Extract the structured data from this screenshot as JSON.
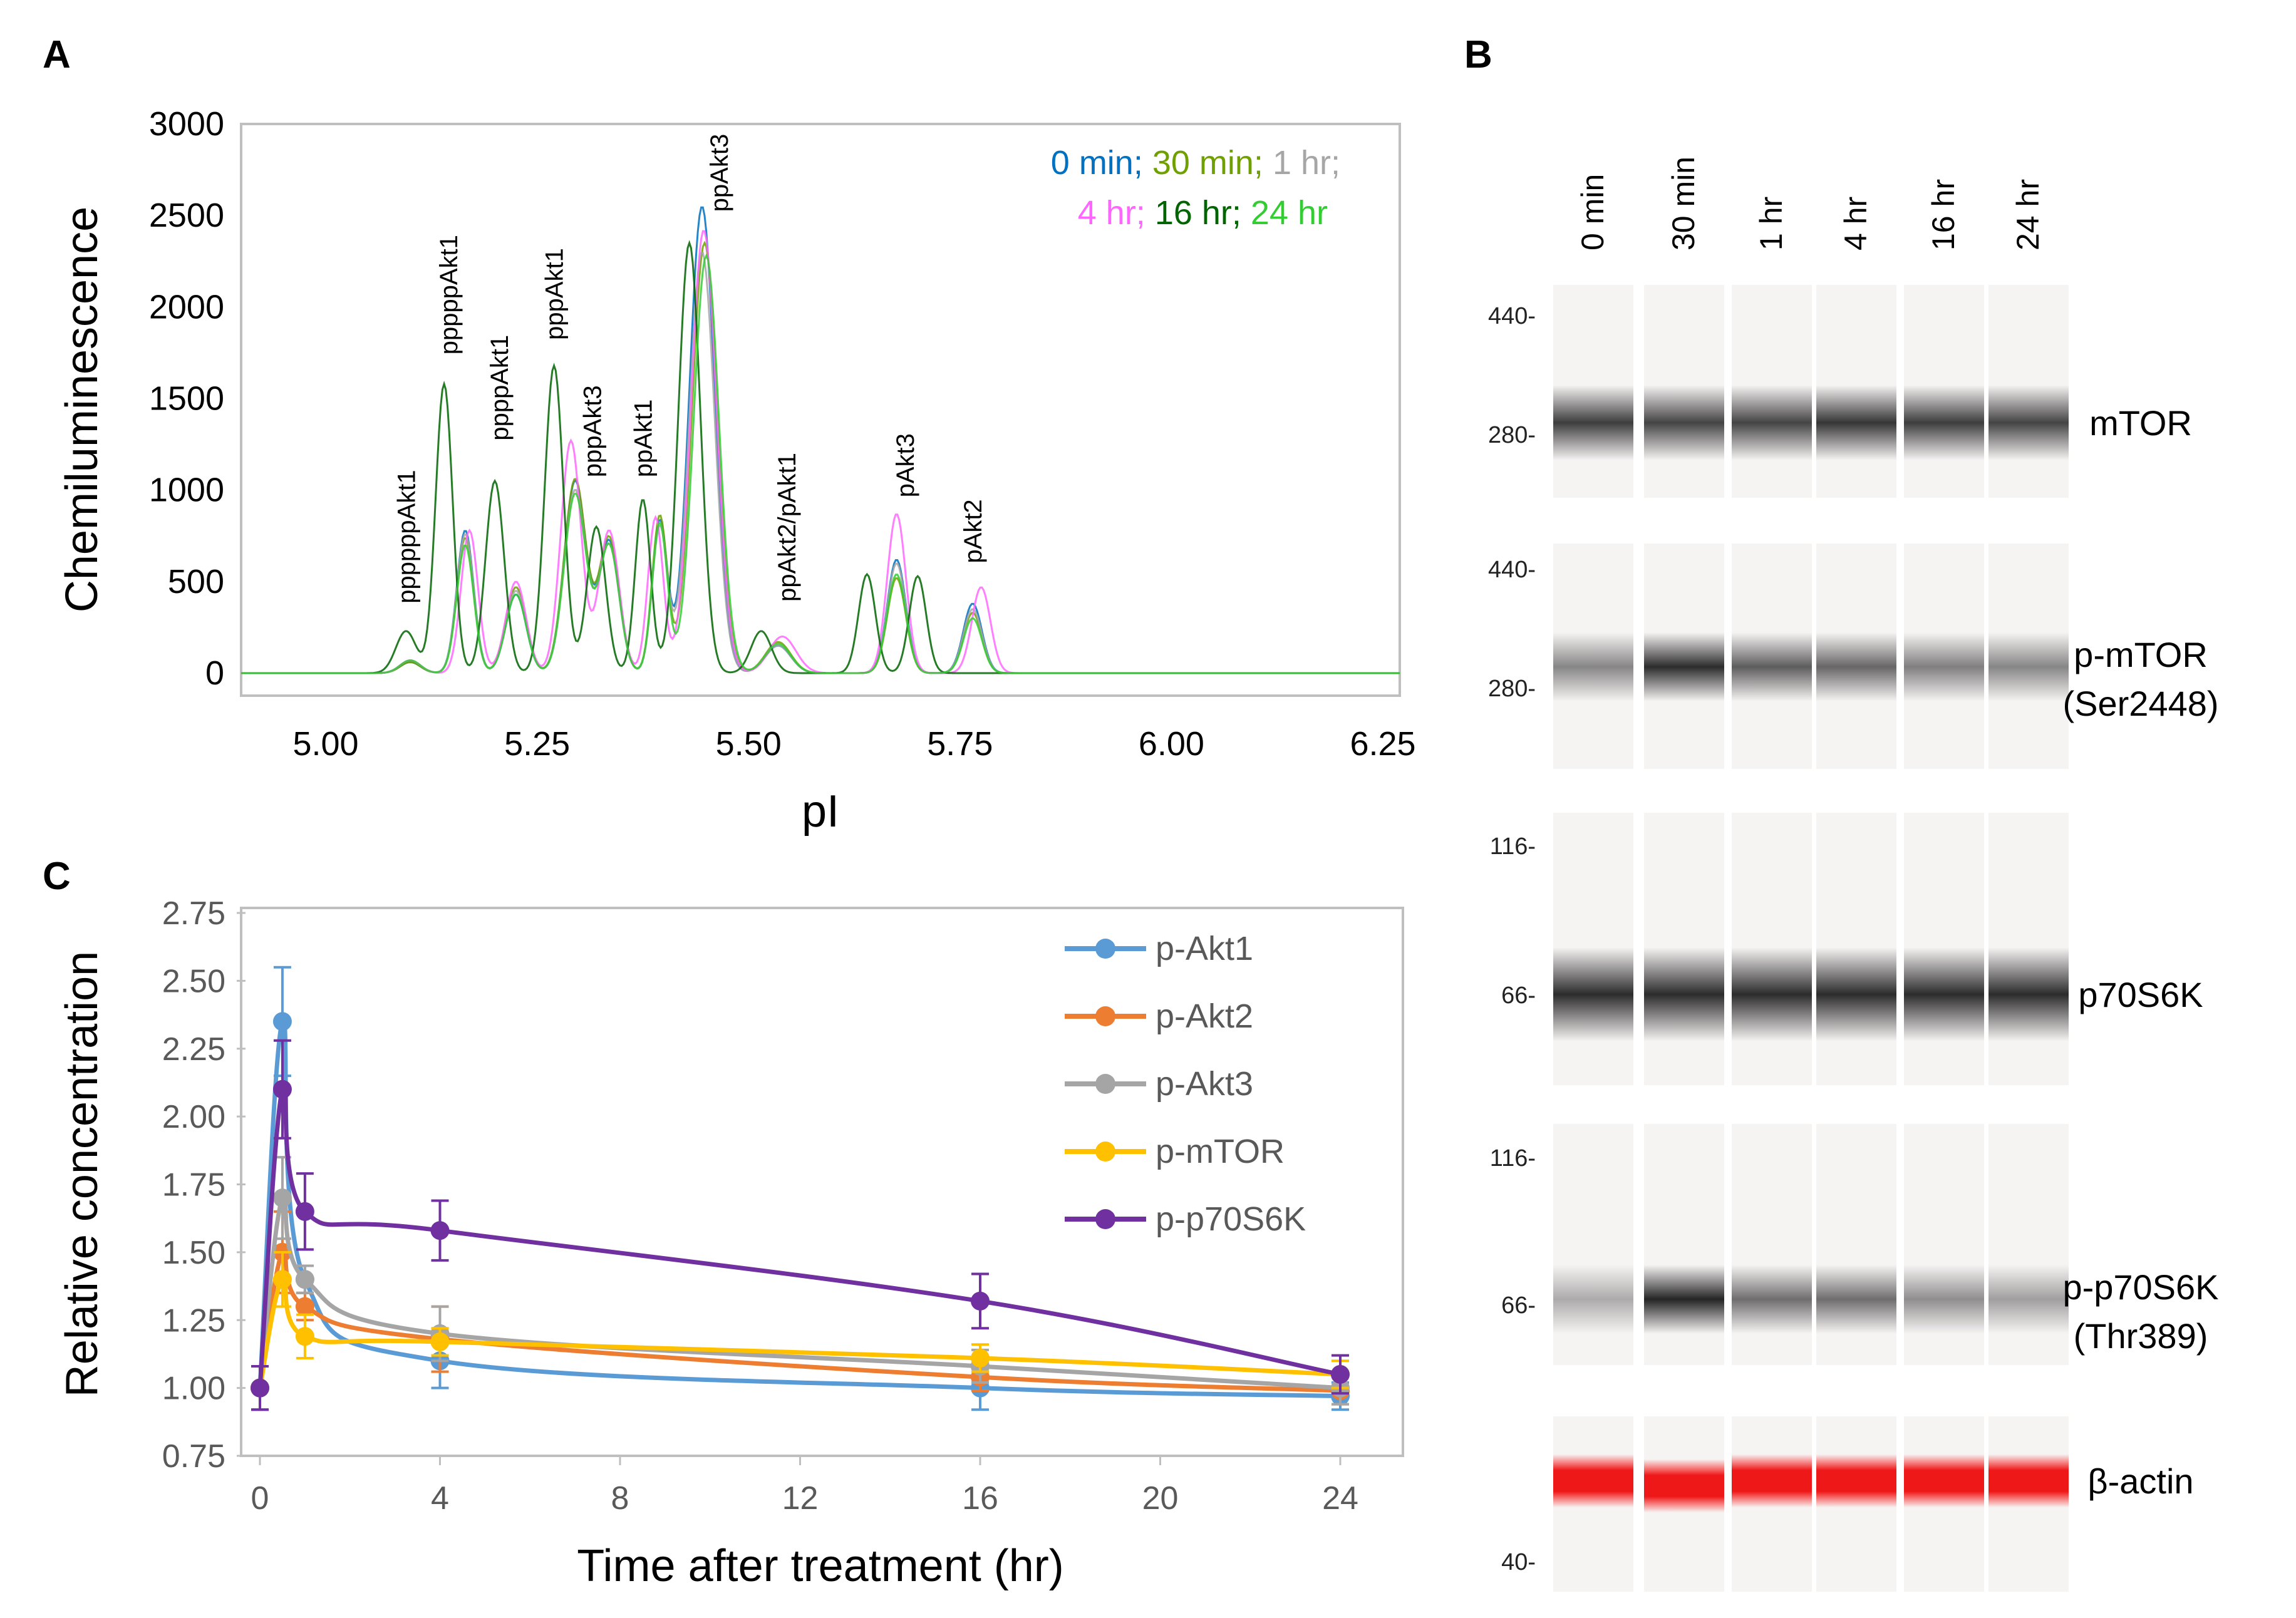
{
  "panels": {
    "A": "A",
    "B": "B",
    "C": "C"
  },
  "colors": {
    "t0": "#0070c0",
    "t30": "#70a000",
    "t1h": "#a6a6a6",
    "t4h": "#ff66ff",
    "t16h": "#006400",
    "t24h": "#33cc33",
    "akt1": "#5b9bd5",
    "akt2": "#ed7d31",
    "akt3": "#a5a5a5",
    "mtor": "#ffc000",
    "p70": "#7030a0"
  },
  "chart_data": [
    {
      "type": "line",
      "panel": "A",
      "xlabel": "pI",
      "ylabel": "Chemiluminescence",
      "xlim": [
        4.9,
        6.27
      ],
      "ylim": [
        0,
        3000
      ],
      "x_ticks": [
        "5.00",
        "5.25",
        "5.50",
        "5.75",
        "6.00",
        "6.25"
      ],
      "x_tick_values": [
        5.0,
        5.25,
        5.5,
        5.75,
        6.0,
        6.25
      ],
      "y_ticks": [
        "0",
        "500",
        "1000",
        "1500",
        "2000",
        "2500",
        "3000"
      ],
      "y_tick_values": [
        0,
        500,
        1000,
        1500,
        2000,
        2500,
        3000
      ],
      "legend": {
        "line1": [
          {
            "text": "0 min;",
            "color_key": "t0"
          },
          {
            "text": " 30 min;",
            "color_key": "t30"
          },
          {
            "text": " 1 hr;",
            "color_key": "t1h"
          }
        ],
        "line2": [
          {
            "text": "4 hr;",
            "color_key": "t4h"
          },
          {
            "text": " 16 hr;",
            "color_key": "t16h"
          },
          {
            "text": " 24 hr",
            "color_key": "t24h"
          }
        ]
      },
      "peak_annotations": [
        {
          "text": "ppppppAkt1",
          "pi": 5.095,
          "level": 380
        },
        {
          "text": "pppppAkt1",
          "pi": 5.145,
          "level": 1740
        },
        {
          "text": "ppppAkt1",
          "pi": 5.205,
          "level": 1270
        },
        {
          "text": "pppAkt1",
          "pi": 5.27,
          "level": 1820
        },
        {
          "text": "pppAkt3",
          "pi": 5.315,
          "level": 1070
        },
        {
          "text": "ppAkt1",
          "pi": 5.375,
          "level": 1070
        },
        {
          "text": "ppAkt3",
          "pi": 5.465,
          "level": 2520
        },
        {
          "text": "ppAkt2/pAkt1",
          "pi": 5.545,
          "level": 390
        },
        {
          "text": "pAkt3",
          "pi": 5.685,
          "level": 960
        },
        {
          "text": "pAkt2",
          "pi": 5.765,
          "level": 600
        }
      ],
      "series": [
        {
          "name": "0 min",
          "color_key": "t0",
          "peaks": [
            [
              5.1,
              60,
              0.012
            ],
            [
              5.165,
              780,
              0.01
            ],
            [
              5.225,
              430,
              0.012
            ],
            [
              5.295,
              1050,
              0.013
            ],
            [
              5.335,
              720,
              0.012
            ],
            [
              5.395,
              830,
              0.009
            ],
            [
              5.445,
              2550,
              0.015
            ],
            [
              5.535,
              150,
              0.015
            ],
            [
              5.675,
              620,
              0.011
            ],
            [
              5.765,
              380,
              0.011
            ]
          ]
        },
        {
          "name": "30 min",
          "color_key": "t30",
          "peaks": [
            [
              5.1,
              60,
              0.012
            ],
            [
              5.165,
              740,
              0.01
            ],
            [
              5.225,
              470,
              0.012
            ],
            [
              5.295,
              1060,
              0.013
            ],
            [
              5.335,
              740,
              0.012
            ],
            [
              5.395,
              860,
              0.009
            ],
            [
              5.448,
              2350,
              0.015
            ],
            [
              5.535,
              170,
              0.015
            ],
            [
              5.675,
              520,
              0.011
            ],
            [
              5.765,
              330,
              0.011
            ]
          ]
        },
        {
          "name": "1 hr",
          "color_key": "t1h",
          "peaks": [
            [
              5.1,
              70,
              0.012
            ],
            [
              5.165,
              760,
              0.01
            ],
            [
              5.225,
              450,
              0.012
            ],
            [
              5.295,
              1000,
              0.013
            ],
            [
              5.335,
              700,
              0.012
            ],
            [
              5.395,
              800,
              0.009
            ],
            [
              5.445,
              2300,
              0.015
            ],
            [
              5.535,
              150,
              0.015
            ],
            [
              5.675,
              600,
              0.011
            ],
            [
              5.765,
              350,
              0.011
            ]
          ]
        },
        {
          "name": "4 hr",
          "color_key": "t4h",
          "peaks": [
            [
              5.1,
              70,
              0.012
            ],
            [
              5.17,
              780,
              0.01
            ],
            [
              5.225,
              500,
              0.012
            ],
            [
              5.29,
              1270,
              0.012
            ],
            [
              5.335,
              780,
              0.012
            ],
            [
              5.39,
              850,
              0.009
            ],
            [
              5.447,
              2420,
              0.015
            ],
            [
              5.54,
              200,
              0.016
            ],
            [
              5.675,
              870,
              0.011
            ],
            [
              5.775,
              470,
              0.011
            ]
          ]
        },
        {
          "name": "16 hr",
          "color_key": "t16h",
          "peaks": [
            [
              5.095,
              230,
              0.012
            ],
            [
              5.14,
              1580,
              0.01
            ],
            [
              5.2,
              1050,
              0.011
            ],
            [
              5.27,
              1680,
              0.011
            ],
            [
              5.32,
              800,
              0.011
            ],
            [
              5.375,
              950,
              0.009
            ],
            [
              5.43,
              2350,
              0.013
            ],
            [
              5.515,
              230,
              0.012
            ],
            [
              5.64,
              540,
              0.01
            ],
            [
              5.7,
              530,
              0.01
            ]
          ]
        },
        {
          "name": "24 hr",
          "color_key": "t24h",
          "peaks": [
            [
              5.1,
              70,
              0.012
            ],
            [
              5.165,
              700,
              0.01
            ],
            [
              5.225,
              430,
              0.012
            ],
            [
              5.295,
              980,
              0.013
            ],
            [
              5.335,
              700,
              0.012
            ],
            [
              5.395,
              820,
              0.009
            ],
            [
              5.45,
              2280,
              0.015
            ],
            [
              5.535,
              160,
              0.015
            ],
            [
              5.675,
              540,
              0.011
            ],
            [
              5.765,
              300,
              0.011
            ]
          ]
        }
      ]
    },
    {
      "type": "line",
      "panel": "C",
      "xlabel": "Time after treatment (hr)",
      "ylabel": "Relative concentration",
      "xlim": [
        0,
        25
      ],
      "ylim": [
        0.75,
        2.75
      ],
      "x_ticks": [
        "0",
        "4",
        "8",
        "12",
        "16",
        "20",
        "24"
      ],
      "x_tick_values": [
        0,
        4,
        8,
        12,
        16,
        20,
        24
      ],
      "y_ticks": [
        "0.75",
        "1.00",
        "1.25",
        "1.50",
        "1.75",
        "2.00",
        "2.25",
        "2.50",
        "2.75"
      ],
      "y_tick_values": [
        0.75,
        1.0,
        1.25,
        1.5,
        1.75,
        2.0,
        2.25,
        2.5,
        2.75
      ],
      "x": [
        0,
        0.5,
        1,
        4,
        16,
        24
      ],
      "series": [
        {
          "name": "p-Akt1",
          "color_key": "akt1",
          "values": [
            1.0,
            2.35,
            1.4,
            1.1,
            1.0,
            0.97
          ],
          "errors": [
            0.08,
            0.2,
            0.05,
            0.1,
            0.08,
            0.05
          ]
        },
        {
          "name": "p-Akt2",
          "color_key": "akt2",
          "values": [
            1.0,
            1.5,
            1.3,
            1.18,
            1.04,
            0.99
          ],
          "errors": [
            0.08,
            0.15,
            0.05,
            0.12,
            0.05,
            0.05
          ]
        },
        {
          "name": "p-Akt3",
          "color_key": "akt3",
          "values": [
            1.0,
            1.7,
            1.4,
            1.2,
            1.08,
            1.0
          ],
          "errors": [
            0.08,
            0.15,
            0.05,
            0.1,
            0.06,
            0.06
          ]
        },
        {
          "name": "p-mTOR",
          "color_key": "mtor",
          "values": [
            1.0,
            1.4,
            1.19,
            1.17,
            1.11,
            1.05
          ],
          "errors": [
            0.08,
            0.1,
            0.08,
            0.05,
            0.05,
            0.05
          ]
        },
        {
          "name": "p-p70S6K",
          "color_key": "p70",
          "values": [
            1.0,
            2.1,
            1.65,
            1.58,
            1.32,
            1.05
          ],
          "errors": [
            0.08,
            0.18,
            0.14,
            0.11,
            0.1,
            0.07
          ]
        }
      ]
    }
  ],
  "panel_b": {
    "lanes": [
      "0 min",
      "30 min",
      "1 hr",
      "4 hr",
      "16 hr",
      "24 hr"
    ],
    "blots": [
      {
        "protein": "mTOR",
        "protein_line2": "",
        "mw_top": "440",
        "mw_bottom": "280",
        "type": "gray",
        "intensities": [
          0.75,
          0.72,
          0.72,
          0.78,
          0.75,
          0.72
        ]
      },
      {
        "protein": "p-mTOR",
        "protein_line2": "(Ser2448)",
        "mw_top": "440",
        "mw_bottom": "280",
        "type": "gray",
        "intensities": [
          0.45,
          0.82,
          0.62,
          0.58,
          0.48,
          0.45
        ]
      },
      {
        "protein": "p70S6K",
        "protein_line2": "",
        "mw_top": "116",
        "mw_bottom": "66",
        "type": "gray",
        "intensities": [
          0.82,
          0.82,
          0.82,
          0.82,
          0.82,
          0.82
        ]
      },
      {
        "protein": "p-p70S6K",
        "protein_line2": "(Thr389)",
        "mw_top": "116",
        "mw_bottom": "66",
        "type": "gray",
        "intensities": [
          0.3,
          0.85,
          0.55,
          0.55,
          0.42,
          0.35
        ]
      },
      {
        "protein": "β-actin",
        "protein_line2": "",
        "mw_top": "",
        "mw_bottom": "40",
        "type": "red",
        "intensities": [
          0.9,
          0.9,
          0.9,
          0.9,
          0.9,
          0.9
        ]
      }
    ]
  }
}
